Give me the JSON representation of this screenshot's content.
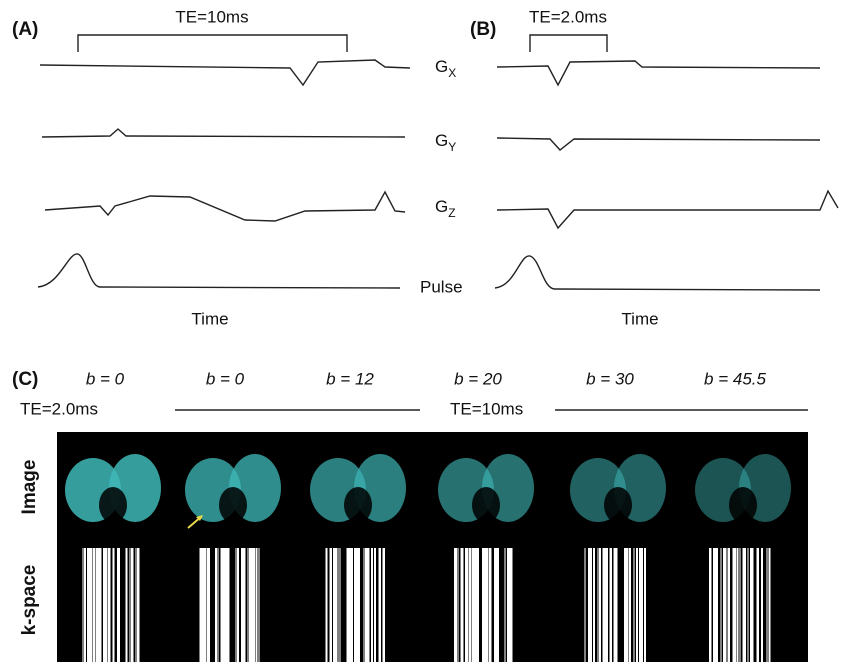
{
  "panel_a": {
    "label": "(A)",
    "te": "TE=10ms",
    "time": "Time"
  },
  "panel_b": {
    "label": "(B)",
    "te": "TE=2.0ms",
    "time": "Time"
  },
  "waveforms": [
    {
      "base": "G",
      "sub": "X"
    },
    {
      "base": "G",
      "sub": "Y"
    },
    {
      "base": "G",
      "sub": "Z"
    },
    {
      "base": "Pulse"
    }
  ],
  "panel_c": {
    "label": "(C)",
    "b_labels": [
      "b = 0",
      "b = 0",
      "b = 12",
      "b = 20",
      "b = 30",
      "b = 45.5"
    ],
    "te_short": "TE=2.0ms",
    "te_long": "TE=10ms",
    "rows": [
      "Image",
      "k-space"
    ]
  }
}
